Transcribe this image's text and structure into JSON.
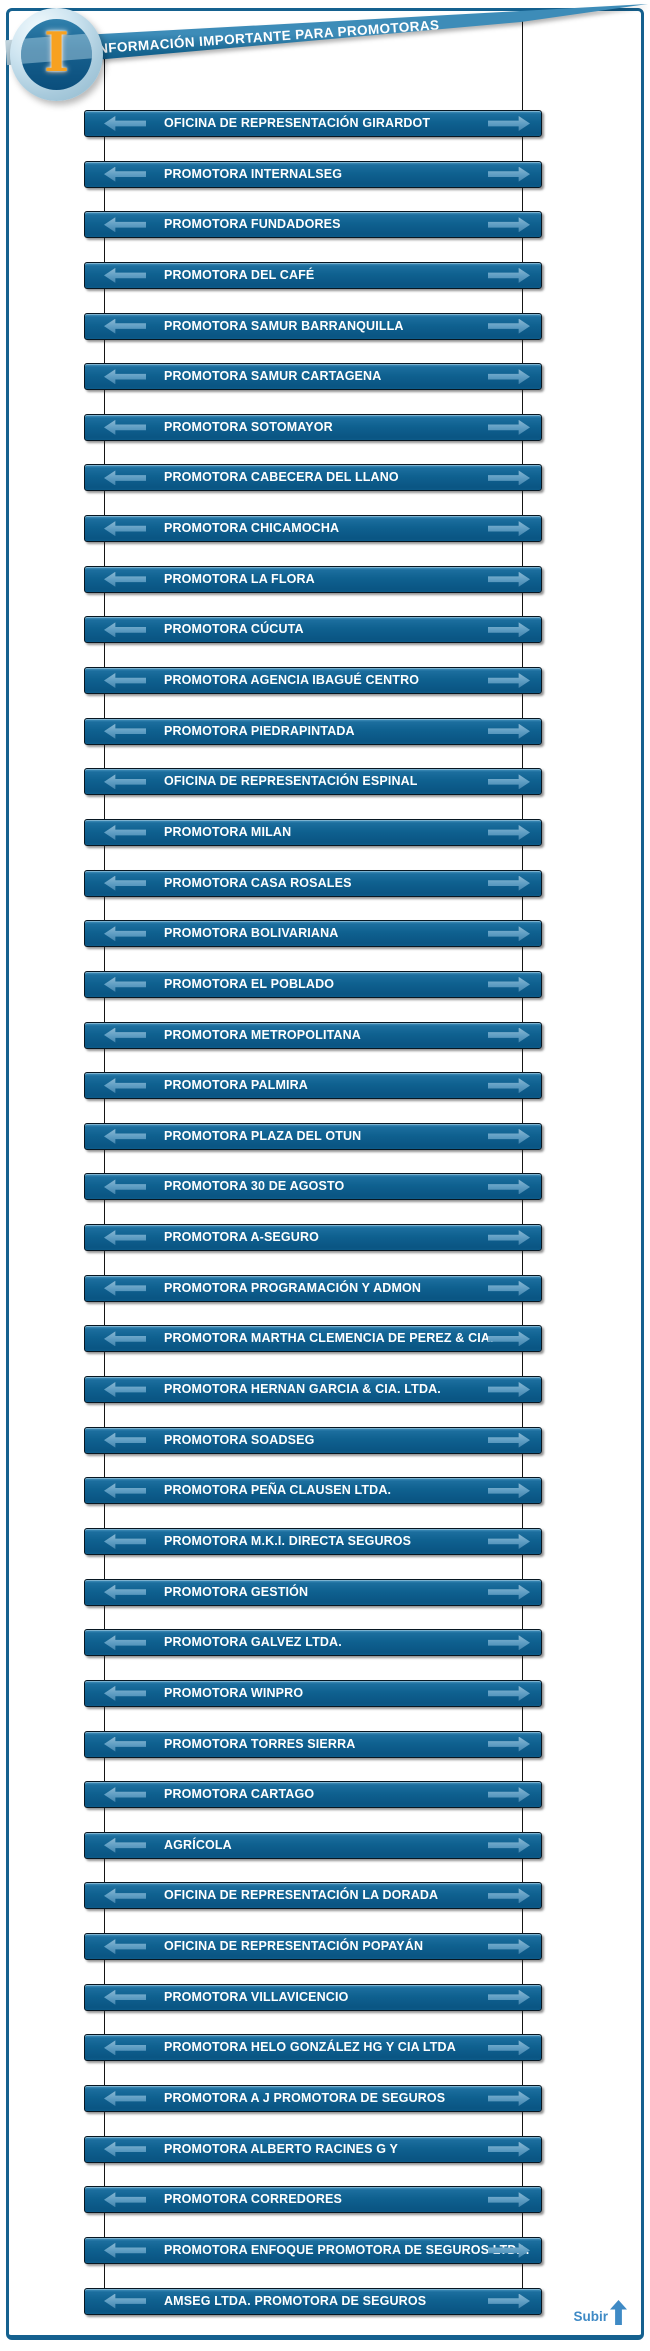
{
  "header": {
    "title": "INFORMACIÓN IMPORTANTE PARA PROMOTORAS",
    "icon_letter": "I"
  },
  "colors": {
    "banner_blue": "#15648f",
    "bar_blue": "#0f6190",
    "bar_border": "#081722",
    "arrow_blue": "#5d9cc2",
    "page_border": "#15618f",
    "link_blue": "#3f8ac5",
    "badge_letter_orange": "#f7a120"
  },
  "list": {
    "items": [
      {
        "label": "OFICINA DE REPRESENTACIÓN GIRARDOT"
      },
      {
        "label": "PROMOTORA INTERNALSEG"
      },
      {
        "label": "PROMOTORA FUNDADORES"
      },
      {
        "label": "PROMOTORA DEL CAFÉ"
      },
      {
        "label": "PROMOTORA SAMUR BARRANQUILLA"
      },
      {
        "label": "PROMOTORA SAMUR CARTAGENA"
      },
      {
        "label": "PROMOTORA SOTOMAYOR"
      },
      {
        "label": "PROMOTORA CABECERA DEL LLANO"
      },
      {
        "label": "PROMOTORA CHICAMOCHA"
      },
      {
        "label": "PROMOTORA LA FLORA"
      },
      {
        "label": "PROMOTORA CÚCUTA"
      },
      {
        "label": "PROMOTORA AGENCIA IBAGUÉ CENTRO"
      },
      {
        "label": "PROMOTORA PIEDRAPINTADA"
      },
      {
        "label": "OFICINA DE REPRESENTACIÓN ESPINAL"
      },
      {
        "label": "PROMOTORA MILAN"
      },
      {
        "label": "PROMOTORA CASA ROSALES"
      },
      {
        "label": "PROMOTORA BOLIVARIANA"
      },
      {
        "label": "PROMOTORA EL POBLADO"
      },
      {
        "label": "PROMOTORA METROPOLITANA"
      },
      {
        "label": "PROMOTORA PALMIRA"
      },
      {
        "label": "PROMOTORA PLAZA DEL OTUN"
      },
      {
        "label": "PROMOTORA 30 DE AGOSTO"
      },
      {
        "label": "PROMOTORA A-SEGURO"
      },
      {
        "label": "PROMOTORA PROGRAMACIÓN Y ADMON"
      },
      {
        "label": "PROMOTORA MARTHA CLEMENCIA DE PEREZ & CIA."
      },
      {
        "label": "PROMOTORA HERNAN GARCIA & CIA. LTDA."
      },
      {
        "label": "PROMOTORA SOADSEG"
      },
      {
        "label": "PROMOTORA PEÑA CLAUSEN LTDA."
      },
      {
        "label": "PROMOTORA M.K.I. DIRECTA SEGUROS"
      },
      {
        "label": "PROMOTORA GESTIÓN"
      },
      {
        "label": "PROMOTORA GALVEZ LTDA."
      },
      {
        "label": "PROMOTORA WINPRO"
      },
      {
        "label": "PROMOTORA TORRES SIERRA"
      },
      {
        "label": "PROMOTORA CARTAGO"
      },
      {
        "label": "AGRÍCOLA"
      },
      {
        "label": "OFICINA DE REPRESENTACIÓN LA DORADA"
      },
      {
        "label": "OFICINA DE REPRESENTACIÓN POPAYÁN"
      },
      {
        "label": "PROMOTORA VILLAVICENCIO"
      },
      {
        "label": "PROMOTORA HELO GONZÁLEZ HG Y CIA LTDA"
      },
      {
        "label": "PROMOTORA A J PROMOTORA DE SEGUROS"
      },
      {
        "label": "PROMOTORA ALBERTO RACINES G Y"
      },
      {
        "label": "PROMOTORA CORREDORES"
      },
      {
        "label": "PROMOTORA ENFOQUE PROMOTORA DE SEGUROS LTDA."
      },
      {
        "label": "AMSEG LTDA. PROMOTORA DE SEGUROS"
      }
    ]
  },
  "footer": {
    "back_to_top_label": "Subir"
  }
}
